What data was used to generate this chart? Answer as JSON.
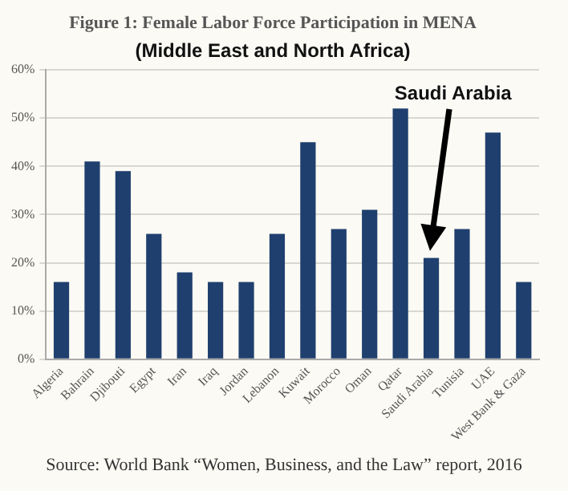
{
  "chart_data": {
    "type": "bar",
    "title": "Figure 1: Female Labor Force Participation in MENA",
    "subtitle": "(Middle East and North Africa)",
    "categories": [
      "Algeria",
      "Bahrain",
      "Djibouti",
      "Egypt",
      "Iran",
      "Iraq",
      "Jordan",
      "Lebanon",
      "Kuwait",
      "Morocco",
      "Oman",
      "Qatar",
      "Saudi Arabia",
      "Tunisia",
      "UAE",
      "West Bank & Gaza"
    ],
    "values": [
      16,
      41,
      39,
      26,
      18,
      16,
      16,
      26,
      45,
      27,
      31,
      52,
      21,
      27,
      47,
      16
    ],
    "color": "#1f3f6e",
    "ylim": [
      0,
      60
    ],
    "yticks": [
      {
        "value": 0,
        "label": "0%"
      },
      {
        "value": 10,
        "label": "10%"
      },
      {
        "value": 20,
        "label": "20%"
      },
      {
        "value": 30,
        "label": "30%"
      },
      {
        "value": 40,
        "label": "40%"
      },
      {
        "value": 50,
        "label": "50%"
      },
      {
        "value": 60,
        "label": "60%"
      }
    ],
    "grid": "y",
    "annotations": [
      "Saudi Arabia",
      "Source: World Bank “Women, Business, and the Law” report, 2016"
    ]
  }
}
